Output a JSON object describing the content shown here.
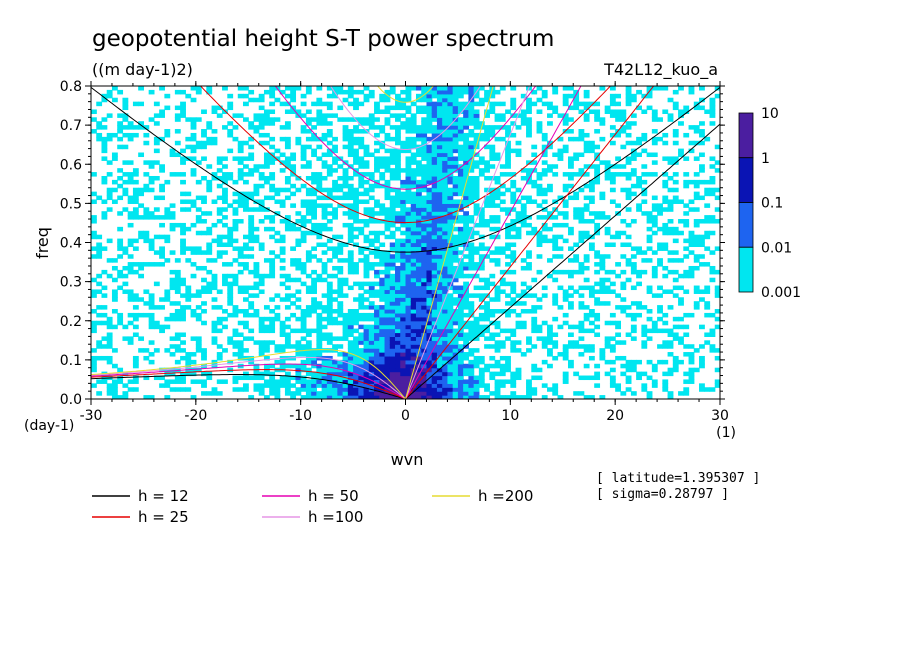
{
  "chart_data": {
    "type": "heatmap",
    "title": "geopotential height S-T power spectrum",
    "units": "((m day-1)2)",
    "run_label": "T42L12_kuo_a",
    "xlabel": "wvn",
    "ylabel": "freq",
    "x_unit": "(1)",
    "y_unit": "(day-1)",
    "xlim": [
      -30,
      30
    ],
    "ylim": [
      0,
      0.8
    ],
    "x_ticks": [
      -30,
      -20,
      -10,
      0,
      10,
      20,
      30
    ],
    "y_ticks": [
      0,
      0.1,
      0.2,
      0.3,
      0.4,
      0.5,
      0.6,
      0.7,
      0.8
    ],
    "x_tick_labels": [
      "-30",
      "-20",
      "-10",
      "0",
      "10",
      "20",
      "30"
    ],
    "y_tick_labels": [
      "0.0",
      "0.1",
      "0.2",
      "0.3",
      "0.4",
      "0.5",
      "0.6",
      "0.7",
      "0.8"
    ],
    "colorbar": {
      "levels": [
        "10",
        "1",
        "0.1",
        "0.01",
        "0.001"
      ],
      "colors": [
        "#4b1ea0",
        "#0a14b4",
        "#1e64f0",
        "#00e6f0"
      ]
    },
    "dispersion_curves": [
      {
        "label": "h = 12",
        "h": 12,
        "color": "#000000"
      },
      {
        "label": "h = 25",
        "h": 25,
        "color": "#e60000"
      },
      {
        "label": "h = 50",
        "h": 50,
        "color": "#e600b4"
      },
      {
        "label": "h =100",
        "h": 100,
        "color": "#e696e6"
      },
      {
        "label": "h =200",
        "h": 200,
        "color": "#e6dc32"
      }
    ],
    "info": [
      "[ latitude=1.395307 ]",
      "[ sigma=0.28797 ]"
    ]
  }
}
